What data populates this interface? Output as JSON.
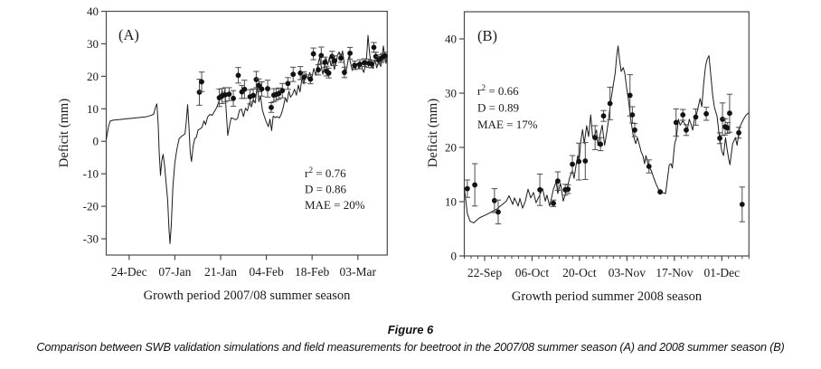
{
  "figure": {
    "caption_title": "Figure 6",
    "caption_body": "Comparison between SWB validation simulations and field measurements for beetroot in the 2007/08 summer season (A) and 2008 summer season (B)"
  },
  "chart_data": [
    {
      "type": "line",
      "panel_label": "(A)",
      "ylabel": "Deficit (mm)",
      "xlabel": "Growth period 2007/08 summer season",
      "ylim": [
        -35,
        40
      ],
      "yticks": [
        -30,
        -20,
        -10,
        0,
        10,
        20,
        30,
        40
      ],
      "grid": false,
      "legend_position": "none",
      "stats": {
        "r2": "0.76",
        "D": "0.86",
        "MAE": "20%"
      },
      "x_axis": {
        "days_total": 86,
        "minor_tick_every": null,
        "ticks": [
          {
            "day": 7,
            "label": "24-Dec"
          },
          {
            "day": 21,
            "label": "07-Jan"
          },
          {
            "day": 35,
            "label": "21-Jan"
          },
          {
            "day": 49,
            "label": "04-Feb"
          },
          {
            "day": 63,
            "label": "18-Feb"
          },
          {
            "day": 77,
            "label": "03-Mar"
          }
        ]
      },
      "series": [
        {
          "name": "SWB simulation",
          "type": "line",
          "x": [
            0,
            0.7,
            1.2,
            2,
            4,
            6,
            8,
            10,
            12,
            13.5,
            14.5,
            15.1,
            15.5,
            15.9,
            16.2,
            16.6,
            17,
            17.4,
            17.9,
            18.3,
            18.8,
            19.2,
            19.5,
            19.9,
            20.4,
            21,
            21.6,
            22.3,
            23,
            23.7,
            24.1,
            24.5,
            24.9,
            25.3,
            25.7,
            26.1,
            26.6,
            27.1,
            27.6,
            28.1,
            28.7,
            29.3,
            29.9,
            30.4,
            31,
            31.7,
            32.4,
            33.1,
            33.8,
            34.4,
            35,
            35.5,
            35.9,
            36.3,
            36.8,
            37.2,
            37.7,
            38.2,
            38.9,
            39.6,
            40.2,
            40.8,
            41.4,
            42,
            42.6,
            43.2,
            43.8,
            44.4,
            45,
            45.6,
            46.2,
            46.7,
            47.2,
            47.8,
            48.4,
            49,
            49.6,
            50.1,
            50.6,
            51.1,
            51.7,
            52.3,
            53,
            53.6,
            54.2,
            54.8,
            55.3,
            55.9,
            56.4,
            57,
            57.6,
            58.2,
            58.8,
            59.3,
            59.9,
            60.5,
            61.1,
            61.7,
            62.3,
            62.9,
            63.5,
            64.1,
            64.7,
            65.3,
            65.8,
            66.3,
            66.8,
            67.3,
            67.8,
            68.3,
            68.8,
            69.3,
            69.8,
            70.3,
            70.8,
            71.3,
            71.8,
            72.3,
            72.8,
            73.3,
            73.8,
            74.3,
            74.8,
            75.3,
            75.8,
            76.3,
            76.8,
            77.3,
            77.8,
            78.3,
            78.8,
            79.3,
            79.7,
            80.1,
            80.6,
            81,
            81.6,
            82.2,
            82.8,
            83.4,
            84,
            84.4,
            84.8,
            85.2,
            85.6,
            86
          ],
          "y": [
            0.5,
            4.5,
            6.2,
            6.5,
            6.7,
            6.9,
            7.1,
            7.3,
            7.5,
            7.9,
            8.3,
            10.6,
            11.5,
            5,
            -3,
            -10.5,
            -6,
            -4,
            -8,
            -12.5,
            -18,
            -27,
            -31.5,
            -26,
            -14,
            -6.5,
            -2.5,
            0.8,
            1.5,
            2,
            2.3,
            6,
            11.3,
            5,
            -3.5,
            -6.2,
            -1.5,
            0.8,
            1.3,
            3.5,
            3.8,
            4.3,
            6.3,
            5.1,
            7.4,
            8.3,
            8,
            9.2,
            10.4,
            12,
            14.2,
            15.6,
            13.6,
            15.8,
            8,
            1.8,
            4.6,
            7.2,
            7,
            6.6,
            7.1,
            9.6,
            9.9,
            7.6,
            10.2,
            9.4,
            11.8,
            10.6,
            12.9,
            11.8,
            17.3,
            12.2,
            14,
            9.6,
            7.6,
            5.9,
            4.5,
            6.8,
            3.3,
            7.8,
            7.3,
            7.6,
            7.2,
            8.4,
            10.6,
            13.4,
            12.1,
            15.4,
            13.6,
            14.4,
            16,
            14.2,
            17.3,
            15.2,
            19.4,
            17.6,
            20.9,
            19.2,
            21.2,
            19.4,
            22.4,
            20.3,
            23.2,
            25.8,
            22.9,
            20.6,
            23.3,
            25.5,
            23.5,
            25.8,
            23.2,
            24.6,
            22.1,
            24.1,
            26.6,
            27.5,
            25.1,
            27.8,
            24.2,
            21.1,
            23.6,
            26.3,
            24,
            21.8,
            23.8,
            22.1,
            24,
            22.3,
            24.4,
            22.5,
            21.2,
            23.3,
            26,
            32.6,
            27,
            24,
            22.4,
            25,
            22.6,
            24.6,
            23,
            26,
            29.3,
            26.5,
            24,
            26.6
          ]
        },
        {
          "name": "Field measurements",
          "type": "scatter_errorbar",
          "points_format": [
            "day",
            "deficit_mm",
            "error_mm"
          ],
          "points": [
            [
              28.5,
              15.1,
              4
            ],
            [
              29.2,
              18.3,
              3
            ],
            [
              34.6,
              13.4,
              2.7
            ],
            [
              35.4,
              13.9,
              2.3
            ],
            [
              36.4,
              14.3,
              2.2
            ],
            [
              37.6,
              14.5,
              2
            ],
            [
              38.9,
              13.2,
              2.4
            ],
            [
              40.4,
              20.3,
              2.4
            ],
            [
              41.5,
              15.2,
              2
            ],
            [
              42.3,
              16,
              2.8
            ],
            [
              44,
              13.7,
              2.2
            ],
            [
              45,
              14.1,
              2
            ],
            [
              45.9,
              19,
              2.5
            ],
            [
              46.7,
              17.2,
              2
            ],
            [
              47.6,
              16.1,
              2.2
            ],
            [
              49.4,
              16.2,
              2.6
            ],
            [
              50.5,
              10.4,
              1.5
            ],
            [
              51.3,
              14.2,
              2
            ],
            [
              52,
              14.4,
              1.8
            ],
            [
              52.8,
              14.7,
              1.7
            ],
            [
              53.9,
              15.6,
              2.2
            ],
            [
              55.6,
              17.8,
              1.8
            ],
            [
              57.2,
              20.6,
              2.2
            ],
            [
              59.4,
              21,
              2
            ],
            [
              60.5,
              19.7,
              1.7
            ],
            [
              62.5,
              19.1,
              1.4
            ],
            [
              63.4,
              26.9,
              1.8
            ],
            [
              64.9,
              22,
              1.6
            ],
            [
              65.8,
              26.4,
              2.6
            ],
            [
              66.9,
              24.3,
              1.6
            ],
            [
              67.4,
              21.6,
              1.5
            ],
            [
              68.1,
              21,
              1.5
            ],
            [
              69.1,
              26.1,
              1.6
            ],
            [
              69.9,
              24.8,
              1.5
            ],
            [
              71.8,
              25.6,
              1.3
            ],
            [
              72.9,
              21.2,
              1.6
            ],
            [
              74.6,
              27.1,
              1.8
            ],
            [
              76,
              23.4,
              1.3
            ],
            [
              77.6,
              23.7,
              1.4
            ],
            [
              79,
              24.2,
              1.2
            ],
            [
              80.3,
              24,
              1.3
            ],
            [
              81.2,
              23.8,
              1.2
            ],
            [
              81.9,
              28.9,
              1.5
            ],
            [
              82.5,
              26.1,
              1.3
            ],
            [
              83.4,
              24.9,
              1.2
            ],
            [
              84.1,
              25.4,
              1.2
            ],
            [
              84.6,
              25.8,
              1.2
            ],
            [
              85.3,
              26.3,
              1.1
            ]
          ]
        }
      ]
    },
    {
      "type": "line",
      "panel_label": "(B)",
      "ylabel": "Deficit (mm)",
      "xlabel": "Growth period summer 2008 season",
      "ylim": [
        0,
        45
      ],
      "yticks": [
        0,
        10,
        20,
        30,
        40
      ],
      "grid": false,
      "legend_position": "none",
      "stats": {
        "r2": "0.66",
        "D": "0.89",
        "MAE": "17%"
      },
      "x_axis": {
        "days_total": 84,
        "minor_tick_every": 2,
        "ticks": [
          {
            "day": 6,
            "label": "22-Sep"
          },
          {
            "day": 20,
            "label": "06-Oct"
          },
          {
            "day": 34,
            "label": "20-Oct"
          },
          {
            "day": 48,
            "label": "03-Nov"
          },
          {
            "day": 62,
            "label": "17-Nov"
          },
          {
            "day": 76,
            "label": "01-Dec"
          }
        ]
      },
      "series": [
        {
          "name": "SWB simulation",
          "type": "line",
          "x": [
            0,
            0.9,
            1.7,
            2.8,
            4.4,
            7.1,
            9.7,
            12.4,
            13.2,
            14.3,
            14.8,
            15.9,
            16.4,
            17.2,
            18,
            18.8,
            19.6,
            20.4,
            21.2,
            22.3,
            23.1,
            23.9,
            24.4,
            25.2,
            26.3,
            27.1,
            27.6,
            28.4,
            29.2,
            30.3,
            31.1,
            31.9,
            32.4,
            33,
            33.5,
            33.9,
            34.3,
            34.9,
            35.4,
            36.1,
            36.7,
            37.3,
            37.9,
            38.6,
            39,
            39.4,
            40.1,
            40.7,
            41.4,
            42.1,
            42.6,
            43.1,
            43.7,
            44.5,
            45,
            45.4,
            45.8,
            46.3,
            46.9,
            47.4,
            47.9,
            48.5,
            49,
            49.8,
            50.6,
            51.1,
            51.7,
            52.2,
            52.7,
            53.2,
            53.6,
            54.4,
            55.2,
            55.7,
            56.5,
            57.3,
            58.4,
            59.4,
            60.5,
            61,
            61.4,
            62.1,
            62.6,
            63.2,
            63.7,
            64.5,
            65.3,
            65.8,
            66.4,
            66.9,
            67.4,
            68,
            68.5,
            69,
            69.6,
            70.1,
            70.6,
            71.2,
            71.7,
            72.2,
            72.8,
            73.3,
            73.8,
            74.6,
            75.2,
            76,
            76.5,
            77.1,
            77.6,
            78,
            78.4,
            79.2,
            80,
            80.5,
            81.3,
            82.4,
            83.2,
            84
          ],
          "y": [
            12.6,
            7.8,
            6.4,
            6.1,
            7,
            7.8,
            8.7,
            10.1,
            11.1,
            9.5,
            10.7,
            9.2,
            10.6,
            8.8,
            10.1,
            12.3,
            10.7,
            11.7,
            9.8,
            11.3,
            12.4,
            10.1,
            11.2,
            9.2,
            12.3,
            13.7,
            11.5,
            13.4,
            10.1,
            12.3,
            14.5,
            15.7,
            14.3,
            16.8,
            18.5,
            17.3,
            20.7,
            23.3,
            20.7,
            24,
            22,
            26,
            21.8,
            22.5,
            23.2,
            20.4,
            22.4,
            24.1,
            20.4,
            23,
            25.2,
            28,
            30.5,
            33.6,
            36.9,
            38.7,
            36.3,
            34,
            34.7,
            33.6,
            31,
            28.5,
            25.7,
            22.4,
            20.7,
            21.8,
            20.4,
            19.2,
            18.5,
            17,
            18.5,
            16.5,
            15.7,
            14.8,
            13.4,
            12.3,
            11.7,
            11.5,
            16.8,
            17,
            16.2,
            20.7,
            21.8,
            25.2,
            24.1,
            24.9,
            24.1,
            23.2,
            25.2,
            24.3,
            23.2,
            25.5,
            26,
            27.4,
            29,
            27.5,
            31.5,
            35,
            36.3,
            36.9,
            33,
            29.6,
            27.4,
            25.7,
            22.4,
            19.3,
            18.5,
            21.8,
            19.5,
            18,
            16.8,
            20.7,
            21.8,
            20.4,
            23.8,
            25.2,
            26,
            26.4
          ]
        },
        {
          "name": "Field measurements",
          "type": "scatter_errorbar",
          "points_format": [
            "day",
            "deficit_mm",
            "error_mm"
          ],
          "points": [
            [
              0.9,
              12.4,
              1.6
            ],
            [
              3.1,
              13.1,
              3.9
            ],
            [
              8.9,
              10.2,
              2.2
            ],
            [
              10,
              8.1,
              2.2
            ],
            [
              22.3,
              12.2,
              2.9
            ],
            [
              26.3,
              9.7,
              0.6
            ],
            [
              27.6,
              13.8,
              1.7
            ],
            [
              29.8,
              12.2,
              1
            ],
            [
              30.6,
              12.3,
              0.8
            ],
            [
              31.9,
              16.9,
              1.6
            ],
            [
              33.8,
              17.4,
              3.4
            ],
            [
              35.7,
              17.5,
              3.4
            ],
            [
              38.6,
              21.8,
              2.2
            ],
            [
              40.2,
              20.6,
              1.2
            ],
            [
              41.1,
              25.8,
              1
            ],
            [
              43,
              28.1,
              3
            ],
            [
              48.9,
              29.6,
              3.8
            ],
            [
              49.6,
              26,
              1.5
            ],
            [
              50.3,
              23.2,
              1.2
            ],
            [
              54.5,
              16.5,
              1.2
            ],
            [
              57.8,
              11.8,
              0
            ],
            [
              62.5,
              24.6,
              2.5
            ],
            [
              64.5,
              26,
              1
            ],
            [
              65.5,
              23.2,
              1
            ],
            [
              68.3,
              25.6,
              1.5
            ],
            [
              71.4,
              26.2,
              1.2
            ],
            [
              75.4,
              21.7,
              1
            ],
            [
              76.2,
              25.2,
              3
            ],
            [
              77,
              23.8,
              1.5
            ],
            [
              77.7,
              23.6,
              1
            ],
            [
              78.3,
              26.3,
              3.5
            ],
            [
              81,
              22.7,
              1
            ],
            [
              82,
              9.5,
              3.2
            ]
          ]
        }
      ]
    }
  ]
}
